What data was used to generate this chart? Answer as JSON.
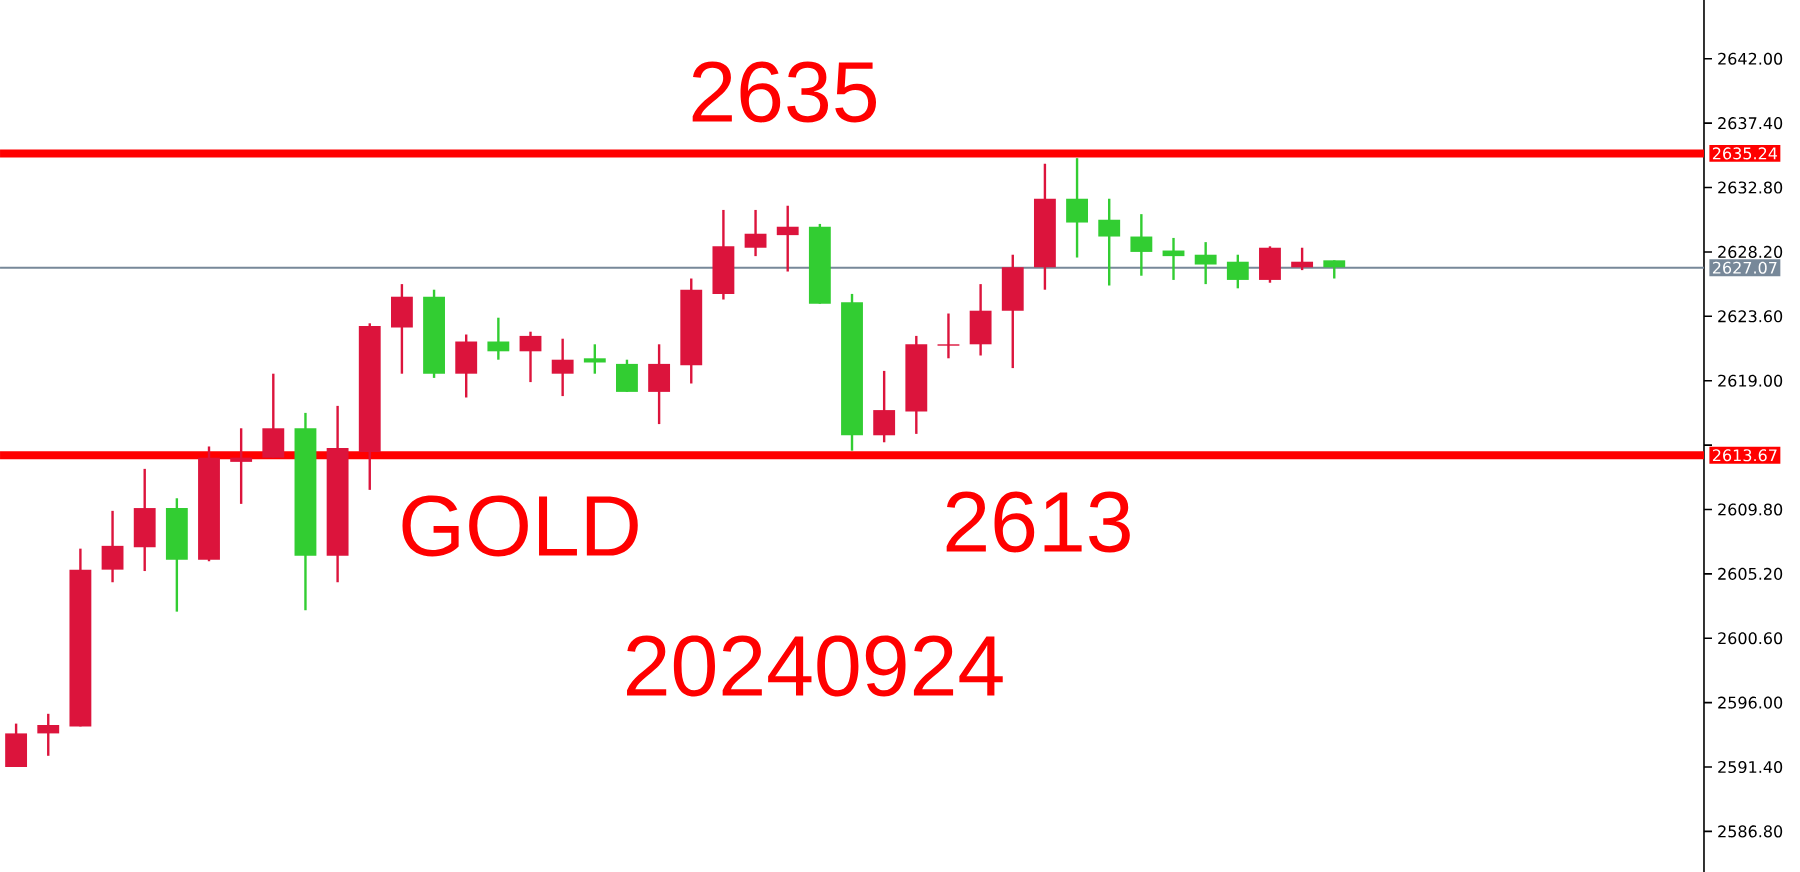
{
  "chart_data": {
    "type": "candlestick",
    "categories": [
      null,
      null,
      null,
      null,
      null,
      null,
      null,
      null,
      null,
      null,
      null,
      null,
      null,
      null,
      null,
      null,
      null,
      null,
      null,
      null,
      null,
      null,
      null,
      null,
      null,
      null,
      null,
      null,
      null,
      null,
      null,
      null,
      null,
      null,
      null,
      null,
      null,
      null,
      null,
      null,
      null,
      null,
      null,
      null,
      null,
      null,
      null,
      null,
      null,
      null,
      null,
      null,
      null
    ],
    "ohlc": [
      [
        2591.4,
        2594.5,
        2591.4,
        2593.8
      ],
      [
        2593.8,
        2595.2,
        2592.2,
        2594.4
      ],
      [
        2594.3,
        2607.0,
        2594.3,
        2605.5
      ],
      [
        2605.5,
        2609.7,
        2604.6,
        2607.2
      ],
      [
        2607.1,
        2612.7,
        2605.4,
        2609.9
      ],
      [
        2609.9,
        2610.6,
        2602.5,
        2606.2
      ],
      [
        2606.2,
        2614.3,
        2606.1,
        2613.5
      ],
      [
        2613.2,
        2615.6,
        2610.2,
        2613.5
      ],
      [
        2613.5,
        2619.5,
        2613.5,
        2615.6
      ],
      [
        2615.6,
        2616.7,
        2602.6,
        2606.5
      ],
      [
        2606.5,
        2617.2,
        2604.6,
        2614.2
      ],
      [
        2613.9,
        2623.1,
        2611.2,
        2622.9
      ],
      [
        2622.8,
        2625.9,
        2619.5,
        2625.0
      ],
      [
        2625.0,
        2625.5,
        2619.2,
        2619.5
      ],
      [
        2619.5,
        2622.3,
        2617.8,
        2621.8
      ],
      [
        2621.8,
        2623.5,
        2620.5,
        2621.1
      ],
      [
        2621.1,
        2622.5,
        2618.9,
        2622.2
      ],
      [
        2619.5,
        2622.0,
        2617.9,
        2620.5
      ],
      [
        2620.6,
        2621.6,
        2619.5,
        2620.3
      ],
      [
        2620.2,
        2620.5,
        2618.2,
        2618.2
      ],
      [
        2618.2,
        2621.6,
        2615.9,
        2620.2
      ],
      [
        2620.1,
        2626.3,
        2618.8,
        2625.5
      ],
      [
        2625.2,
        2631.2,
        2624.8,
        2628.6
      ],
      [
        2628.5,
        2631.2,
        2627.9,
        2629.5
      ],
      [
        2629.4,
        2631.5,
        2626.8,
        2630.0
      ],
      [
        2630.0,
        2630.2,
        2624.5,
        2624.5
      ],
      [
        2624.6,
        2625.2,
        2614.0,
        2615.1
      ],
      [
        2615.1,
        2619.7,
        2614.6,
        2616.9
      ],
      [
        2616.8,
        2622.2,
        2615.2,
        2621.6
      ],
      [
        2621.5,
        2623.8,
        2620.6,
        2621.6
      ],
      [
        2621.6,
        2625.9,
        2620.8,
        2624.0
      ],
      [
        2624.0,
        2628.0,
        2619.9,
        2627.1
      ],
      [
        2627.1,
        2634.5,
        2625.5,
        2632.0
      ],
      [
        2632.0,
        2634.9,
        2627.8,
        2630.3
      ],
      [
        2630.5,
        2632.0,
        2625.8,
        2629.3
      ],
      [
        2629.3,
        2630.9,
        2626.5,
        2628.2
      ],
      [
        2628.3,
        2629.2,
        2626.2,
        2627.9
      ],
      [
        2628.0,
        2628.9,
        2625.9,
        2627.3
      ],
      [
        2627.5,
        2628.0,
        2625.6,
        2626.2
      ],
      [
        2626.2,
        2628.6,
        2626.0,
        2628.5
      ],
      [
        2627.1,
        2628.5,
        2626.9,
        2627.5
      ],
      [
        2627.6,
        2627.6,
        2626.3,
        2627.1
      ],
      null,
      null,
      null,
      null,
      null,
      null,
      null,
      null,
      null,
      null,
      null
    ],
    "colors": [
      "#dc143c",
      "#dc143c",
      "#dc143c",
      "#dc143c",
      "#dc143c",
      "#32cd32",
      "#dc143c",
      "#dc143c",
      "#dc143c",
      "#32cd32",
      "#dc143c",
      "#dc143c",
      "#dc143c",
      "#32cd32",
      "#dc143c",
      "#32cd32",
      "#dc143c",
      "#dc143c",
      "#32cd32",
      "#32cd32",
      "#dc143c",
      "#dc143c",
      "#dc143c",
      "#dc143c",
      "#dc143c",
      "#32cd32",
      "#32cd32",
      "#dc143c",
      "#dc143c",
      "#dc143c",
      "#dc143c",
      "#dc143c",
      "#dc143c",
      "#32cd32",
      "#32cd32",
      "#32cd32",
      "#32cd32",
      "#32cd32",
      "#32cd32",
      "#dc143c",
      "#dc143c",
      "#32cd32",
      null,
      null,
      null,
      null,
      null,
      null,
      null,
      null,
      null,
      null,
      null
    ],
    "ylim": [
      2583.9,
      2646.2
    ],
    "yticks": [
      {
        "value": 2642,
        "label": "2642.00"
      },
      {
        "value": 2637.4,
        "label": "2637.40"
      },
      {
        "value": 2632.8,
        "label": "2632.80"
      },
      {
        "value": 2628.2,
        "label": "2628.20"
      },
      {
        "value": 2623.6,
        "label": "2623.60"
      },
      {
        "value": 2619,
        "label": "2619.00"
      },
      {
        "value": 2614.4,
        "label": null
      },
      {
        "value": 2609.8,
        "label": "2609.80"
      },
      {
        "value": 2605.2,
        "label": "2605.20"
      },
      {
        "value": 2600.6,
        "label": "2600.60"
      },
      {
        "value": 2596,
        "label": "2596.00"
      },
      {
        "value": 2591.4,
        "label": "2591.40"
      },
      {
        "value": 2586.8,
        "label": "2586.80"
      }
    ],
    "ref_lines": [
      {
        "axis": "y",
        "value": 2635.24,
        "label": "2635.24",
        "color": "#ff0000"
      },
      {
        "axis": "y",
        "value": 2613.67,
        "label": "2613.67",
        "color": "#ff0000"
      },
      {
        "axis": "y",
        "value": 2627.07,
        "label": "2627.07",
        "color": "#778899"
      }
    ],
    "annotations": [
      "2635",
      "GOLD",
      "2613",
      "20240924"
    ],
    "grid": false
  }
}
